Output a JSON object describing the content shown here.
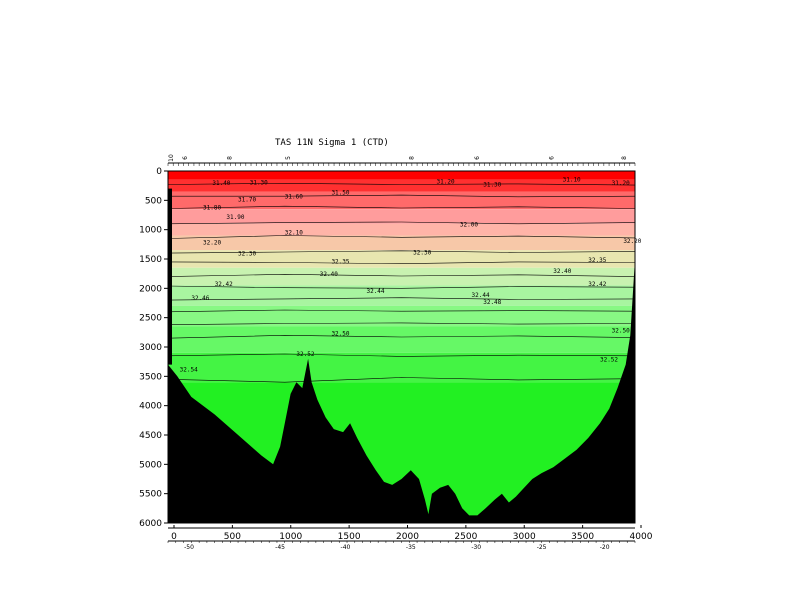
{
  "chart_data": {
    "type": "heatmap",
    "title": "TAS 11N Sigma 1 (CTD)",
    "xlabel": "",
    "ylabel": "",
    "xlim": [
      0,
      4000
    ],
    "ylim": [
      6000,
      0
    ],
    "x_ticks": [
      0,
      500,
      1000,
      1500,
      2000,
      2500,
      3000,
      3500,
      4000
    ],
    "x_tick_labels": [
      "0",
      "500",
      "1000",
      "1500",
      "2000",
      "2500",
      "3000",
      "3500",
      "4000"
    ],
    "y_ticks": [
      0,
      500,
      1000,
      1500,
      2000,
      2500,
      3000,
      3500,
      4000,
      4500,
      5000,
      5500,
      6000
    ],
    "y_tick_labels": [
      "0",
      "500",
      "1000",
      "1500",
      "2000",
      "2500",
      "3000",
      "3500",
      "4000",
      "4500",
      "5000",
      "5500",
      "6000"
    ],
    "longitude_ticks": [
      {
        "label": "-50",
        "x": 180
      },
      {
        "label": "-45",
        "x": 960
      },
      {
        "label": "-40",
        "x": 1520
      },
      {
        "label": "-35",
        "x": 2080
      },
      {
        "label": "-30",
        "x": 2640
      },
      {
        "label": "-25",
        "x": 3200
      },
      {
        "label": "-20",
        "x": 3740
      }
    ],
    "station_ticks": [
      {
        "label": "10",
        "x": 0
      },
      {
        "label": "6",
        "x": 120
      },
      {
        "label": "8",
        "x": 500
      },
      {
        "label": "5",
        "x": 1000
      },
      {
        "label": "8",
        "x": 2060
      },
      {
        "label": "6",
        "x": 2620
      },
      {
        "label": "6",
        "x": 3260
      },
      {
        "label": "8",
        "x": 3880
      }
    ],
    "color_bands": [
      {
        "depth": 0,
        "color": "#ff0000"
      },
      {
        "depth": 150,
        "color": "#ff3030"
      },
      {
        "depth": 350,
        "color": "#ff6a6a"
      },
      {
        "depth": 650,
        "color": "#ff9c9c"
      },
      {
        "depth": 900,
        "color": "#ffb4a8"
      },
      {
        "depth": 1100,
        "color": "#f7c8a8"
      },
      {
        "depth": 1350,
        "color": "#e8e6b0"
      },
      {
        "depth": 1650,
        "color": "#c8f2b0"
      },
      {
        "depth": 1950,
        "color": "#a8f5a0"
      },
      {
        "depth": 2300,
        "color": "#88f884"
      },
      {
        "depth": 2650,
        "color": "#66f866"
      },
      {
        "depth": 3100,
        "color": "#44f444"
      },
      {
        "depth": 3600,
        "color": "#22f022"
      }
    ],
    "contours": [
      {
        "label": "31.40",
        "depth": 230,
        "points": [
          [
            0,
            230
          ],
          [
            1000,
            210
          ],
          [
            2000,
            230
          ],
          [
            3000,
            220
          ],
          [
            4000,
            240
          ]
        ]
      },
      {
        "label": "31.60",
        "depth": 420,
        "points": [
          [
            0,
            430
          ],
          [
            1000,
            430
          ],
          [
            2000,
            410
          ],
          [
            3000,
            440
          ],
          [
            4000,
            430
          ]
        ]
      },
      {
        "label": "31.80",
        "depth": 620,
        "points": [
          [
            0,
            640
          ],
          [
            1000,
            600
          ],
          [
            2000,
            630
          ],
          [
            3000,
            610
          ],
          [
            4000,
            640
          ]
        ]
      },
      {
        "label": "32.00",
        "depth": 880,
        "points": [
          [
            0,
            900
          ],
          [
            1000,
            880
          ],
          [
            2000,
            870
          ],
          [
            3000,
            900
          ],
          [
            4000,
            880
          ]
        ]
      },
      {
        "label": "32.20",
        "depth": 1120,
        "points": [
          [
            0,
            1150
          ],
          [
            1000,
            1100
          ],
          [
            2000,
            1130
          ],
          [
            3000,
            1110
          ],
          [
            4000,
            1140
          ]
        ]
      },
      {
        "label": "32.30",
        "depth": 1380,
        "points": [
          [
            0,
            1400
          ],
          [
            1000,
            1380
          ],
          [
            2000,
            1360
          ],
          [
            3000,
            1390
          ],
          [
            4000,
            1370
          ]
        ]
      },
      {
        "label": "32.35",
        "depth": 1560,
        "points": [
          [
            0,
            1550
          ],
          [
            1000,
            1560
          ],
          [
            2000,
            1580
          ],
          [
            3000,
            1550
          ],
          [
            4000,
            1560
          ]
        ]
      },
      {
        "label": "32.40",
        "depth": 1780,
        "points": [
          [
            0,
            1800
          ],
          [
            1000,
            1760
          ],
          [
            2000,
            1790
          ],
          [
            3000,
            1770
          ],
          [
            4000,
            1800
          ]
        ]
      },
      {
        "label": "32.42",
        "depth": 1980,
        "points": [
          [
            0,
            1960
          ],
          [
            1000,
            1990
          ],
          [
            2000,
            2000
          ],
          [
            3000,
            1970
          ],
          [
            4000,
            1980
          ]
        ]
      },
      {
        "label": "32.44",
        "depth": 2180,
        "points": [
          [
            0,
            2200
          ],
          [
            1000,
            2180
          ],
          [
            2000,
            2160
          ],
          [
            3000,
            2190
          ],
          [
            4000,
            2180
          ]
        ]
      },
      {
        "label": "32.46",
        "depth": 2380,
        "points": [
          [
            0,
            2400
          ],
          [
            1000,
            2370
          ],
          [
            2000,
            2390
          ],
          [
            3000,
            2380
          ],
          [
            4000,
            2390
          ]
        ]
      },
      {
        "label": "32.48",
        "depth": 2600,
        "points": [
          [
            0,
            2620
          ],
          [
            1000,
            2600
          ],
          [
            2000,
            2590
          ],
          [
            3000,
            2610
          ],
          [
            4000,
            2600
          ]
        ]
      },
      {
        "label": "32.50",
        "depth": 2820,
        "points": [
          [
            0,
            2850
          ],
          [
            1000,
            2800
          ],
          [
            2000,
            2830
          ],
          [
            3000,
            2810
          ],
          [
            4000,
            2840
          ]
        ]
      },
      {
        "label": "32.52",
        "depth": 3150,
        "points": [
          [
            0,
            3150
          ],
          [
            1000,
            3120
          ],
          [
            2000,
            3160
          ],
          [
            3000,
            3140
          ],
          [
            4000,
            3150
          ]
        ]
      },
      {
        "label": "32.54",
        "depth": 3550,
        "points": [
          [
            0,
            3550
          ],
          [
            1000,
            3600
          ],
          [
            2000,
            3520
          ],
          [
            3000,
            3560
          ],
          [
            4000,
            3540
          ]
        ]
      }
    ],
    "contour_labels": [
      {
        "text": "31.40",
        "x": 380,
        "y": 240
      },
      {
        "text": "31.30",
        "x": 700,
        "y": 230
      },
      {
        "text": "31.50",
        "x": 1400,
        "y": 400
      },
      {
        "text": "31.60",
        "x": 1000,
        "y": 470
      },
      {
        "text": "31.20",
        "x": 2300,
        "y": 210
      },
      {
        "text": "31.30",
        "x": 2700,
        "y": 260
      },
      {
        "text": "31.10",
        "x": 3380,
        "y": 180
      },
      {
        "text": "31.20",
        "x": 3800,
        "y": 240
      },
      {
        "text": "31.70",
        "x": 600,
        "y": 520
      },
      {
        "text": "31.80",
        "x": 300,
        "y": 660
      },
      {
        "text": "31.90",
        "x": 500,
        "y": 820
      },
      {
        "text": "32.10",
        "x": 1000,
        "y": 1080
      },
      {
        "text": "32.20",
        "x": 300,
        "y": 1250
      },
      {
        "text": "32.30",
        "x": 600,
        "y": 1440
      },
      {
        "text": "32.35",
        "x": 1400,
        "y": 1580
      },
      {
        "text": "32.40",
        "x": 1300,
        "y": 1790
      },
      {
        "text": "32.42",
        "x": 400,
        "y": 1960
      },
      {
        "text": "32.44",
        "x": 1700,
        "y": 2080
      },
      {
        "text": "32.46",
        "x": 200,
        "y": 2200
      },
      {
        "text": "32.48",
        "x": 2700,
        "y": 2270
      },
      {
        "text": "32.50",
        "x": 1400,
        "y": 2800
      },
      {
        "text": "32.52",
        "x": 1100,
        "y": 3150
      },
      {
        "text": "32.54",
        "x": 100,
        "y": 3420
      },
      {
        "text": "32.40",
        "x": 3300,
        "y": 1740
      },
      {
        "text": "32.30",
        "x": 2100,
        "y": 1420
      },
      {
        "text": "32.00",
        "x": 2500,
        "y": 950
      },
      {
        "text": "32.20",
        "x": 3900,
        "y": 1230
      },
      {
        "text": "32.35",
        "x": 3600,
        "y": 1550
      },
      {
        "text": "32.44",
        "x": 2600,
        "y": 2150
      },
      {
        "text": "32.42",
        "x": 3600,
        "y": 1960
      },
      {
        "text": "32.50",
        "x": 3800,
        "y": 2750
      },
      {
        "text": "32.52",
        "x": 3700,
        "y": 3250
      }
    ],
    "bathymetry": [
      [
        0,
        3300
      ],
      [
        80,
        3500
      ],
      [
        200,
        3850
      ],
      [
        400,
        4150
      ],
      [
        600,
        4500
      ],
      [
        800,
        4850
      ],
      [
        900,
        5000
      ],
      [
        960,
        4700
      ],
      [
        1000,
        4300
      ],
      [
        1050,
        3800
      ],
      [
        1100,
        3600
      ],
      [
        1150,
        3700
      ],
      [
        1200,
        3200
      ],
      [
        1230,
        3600
      ],
      [
        1280,
        3900
      ],
      [
        1350,
        4200
      ],
      [
        1420,
        4400
      ],
      [
        1500,
        4450
      ],
      [
        1560,
        4300
      ],
      [
        1620,
        4550
      ],
      [
        1700,
        4850
      ],
      [
        1780,
        5100
      ],
      [
        1850,
        5300
      ],
      [
        1920,
        5350
      ],
      [
        2000,
        5250
      ],
      [
        2080,
        5100
      ],
      [
        2150,
        5250
      ],
      [
        2200,
        5600
      ],
      [
        2230,
        5850
      ],
      [
        2260,
        5500
      ],
      [
        2330,
        5400
      ],
      [
        2400,
        5350
      ],
      [
        2460,
        5500
      ],
      [
        2520,
        5750
      ],
      [
        2580,
        5870
      ],
      [
        2650,
        5870
      ],
      [
        2720,
        5750
      ],
      [
        2800,
        5600
      ],
      [
        2860,
        5500
      ],
      [
        2920,
        5650
      ],
      [
        2980,
        5550
      ],
      [
        3050,
        5400
      ],
      [
        3120,
        5250
      ],
      [
        3200,
        5150
      ],
      [
        3300,
        5050
      ],
      [
        3400,
        4900
      ],
      [
        3500,
        4750
      ],
      [
        3600,
        4550
      ],
      [
        3700,
        4300
      ],
      [
        3780,
        4050
      ],
      [
        3850,
        3700
      ],
      [
        3920,
        3300
      ],
      [
        3960,
        2800
      ],
      [
        3985,
        2000
      ],
      [
        4000,
        1500
      ]
    ],
    "left_wall": [
      [
        0,
        300
      ],
      [
        0,
        3300
      ]
    ]
  }
}
